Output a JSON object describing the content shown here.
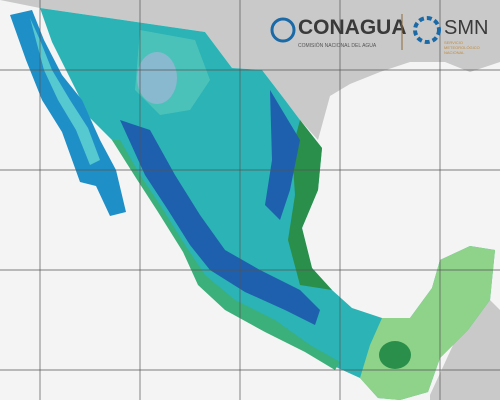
{
  "logos": {
    "conagua": {
      "name": "CONAGUA",
      "subtitle": "COMISIÓN NACIONAL DEL AGUA"
    },
    "smn": {
      "name": "SMN",
      "subtitle_lines": [
        "SERVICIO",
        "METEOROLÓGICO",
        "NACIONAL"
      ]
    }
  }
}
